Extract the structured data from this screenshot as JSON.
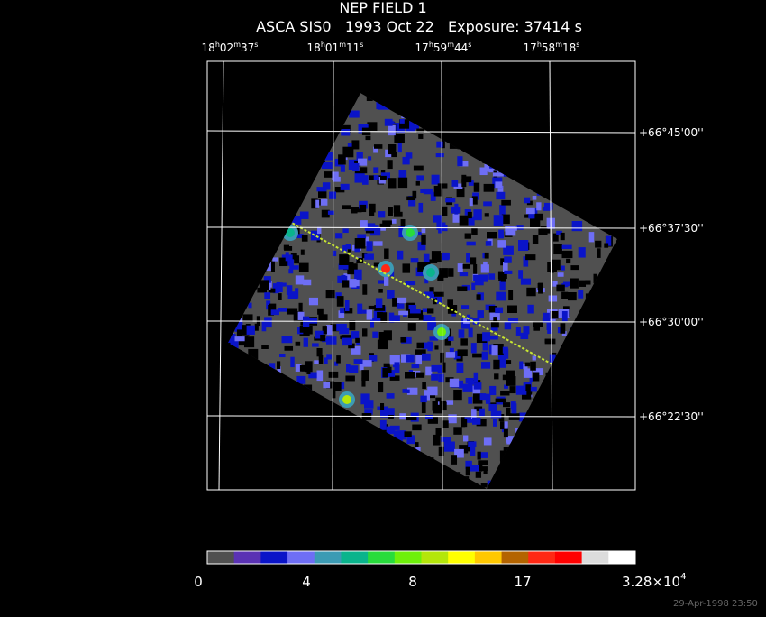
{
  "header": {
    "title": "NEP FIELD 1",
    "subtitle": "ASCA SIS0   1993 Oct 22   Exposure: 37414 s"
  },
  "ra_labels": [
    {
      "parts": [
        "18",
        "h",
        "02",
        "m",
        "37",
        "s"
      ]
    },
    {
      "parts": [
        "18",
        "h",
        "01",
        "m",
        "11",
        "s"
      ]
    },
    {
      "parts": [
        "17",
        "h",
        "59",
        "m",
        "44",
        "s"
      ]
    },
    {
      "parts": [
        "17",
        "h",
        "58",
        "m",
        "18",
        "s"
      ]
    }
  ],
  "dec_labels": [
    "+66°45'00''",
    "+66°37'30''",
    "+66°30'00''",
    "+66°22'30''"
  ],
  "colorbar": {
    "colors": [
      "#505050",
      "#5a32b4",
      "#0a14c8",
      "#6e6ef5",
      "#3c9bb4",
      "#0ab48c",
      "#28dc3c",
      "#6ef00a",
      "#b4e60a",
      "#ffff00",
      "#ffc800",
      "#b46400",
      "#ff2814",
      "#ff0000",
      "#dcdcdc",
      "#ffffff"
    ],
    "labels": [
      "0",
      "4",
      "8",
      "17"
    ],
    "max_label": {
      "mantissa": "3.28×10",
      "exponent": "4"
    }
  },
  "footer": "29-Apr-1998 23:50"
}
